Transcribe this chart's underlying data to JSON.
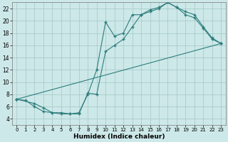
{
  "xlabel": "Humidex (Indice chaleur)",
  "background_color": "#cde8e8",
  "grid_color": "#aacccc",
  "line_color": "#2e7d7d",
  "xlim": [
    -0.5,
    23.5
  ],
  "ylim": [
    3.0,
    23.0
  ],
  "xticks": [
    0,
    1,
    2,
    3,
    4,
    5,
    6,
    7,
    8,
    9,
    10,
    11,
    12,
    13,
    14,
    15,
    16,
    17,
    18,
    19,
    20,
    21,
    22,
    23
  ],
  "yticks": [
    4,
    6,
    8,
    10,
    12,
    14,
    16,
    18,
    20,
    22
  ],
  "curve1_x": [
    0,
    1,
    2,
    3,
    4,
    5,
    6,
    7,
    8,
    9,
    10,
    11,
    12,
    13,
    14,
    15,
    16,
    17,
    18,
    19,
    20,
    21,
    22,
    23
  ],
  "curve1_y": [
    7.2,
    7.0,
    6.0,
    5.2,
    5.0,
    4.8,
    4.8,
    5.0,
    8.0,
    12.0,
    19.8,
    17.5,
    18.0,
    21.0,
    21.0,
    21.8,
    22.2,
    23.0,
    22.2,
    21.0,
    20.5,
    18.8,
    17.0,
    16.3
  ],
  "curve2_x": [
    0,
    2,
    3,
    4,
    5,
    6,
    7,
    8,
    9,
    10,
    11,
    12,
    13,
    14,
    15,
    16,
    17,
    18,
    19,
    20,
    21,
    22,
    23
  ],
  "curve2_y": [
    7.2,
    6.5,
    5.8,
    5.0,
    5.0,
    4.8,
    4.8,
    8.2,
    8.0,
    15.0,
    16.0,
    17.0,
    19.0,
    21.0,
    21.5,
    22.0,
    23.0,
    22.2,
    21.5,
    21.0,
    19.0,
    17.2,
    16.3
  ],
  "curve3_x": [
    0,
    23
  ],
  "curve3_y": [
    7.2,
    16.3
  ]
}
